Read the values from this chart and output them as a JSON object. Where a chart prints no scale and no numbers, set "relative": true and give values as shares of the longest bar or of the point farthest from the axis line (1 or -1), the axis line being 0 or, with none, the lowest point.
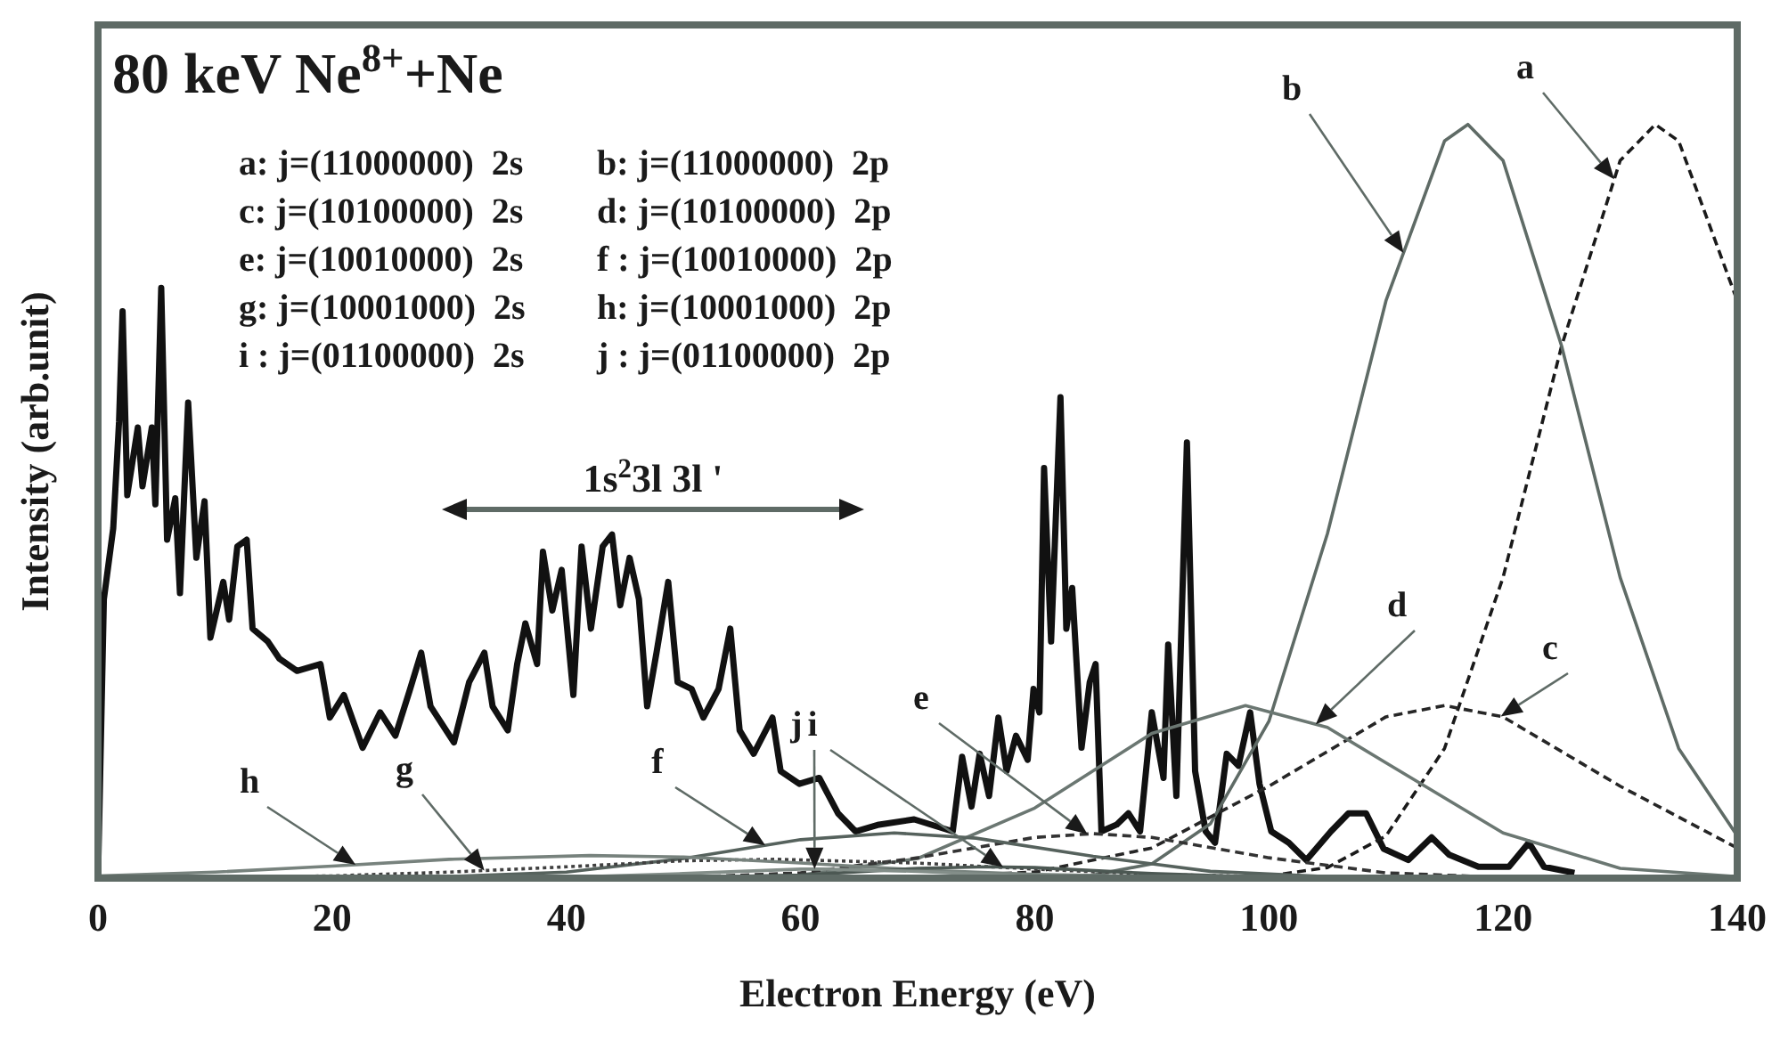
{
  "chart_data": {
    "type": "line",
    "relative": true,
    "marker": "none",
    "title": "80 keV Ne$^{8+}$+Ne",
    "xlabel": "Electron Energy (eV)",
    "ylabel": "Intensity (arb.unit)",
    "xlim": [
      0,
      140
    ],
    "xticks": [
      0,
      20,
      40,
      60,
      80,
      100,
      120,
      140
    ],
    "annotations": [
      "a: j=(11000000)  2s",
      "b: j=(11000000)  2p",
      "c: j=(10100000)  2s",
      "d: j=(10100000)  2p",
      "e: j=(10010000)  2s",
      "f : j=(10010000)  2p",
      "g: j=(10001000)  2s",
      "h: j=(10001000)  2p",
      "i : j=(01100000)  2s",
      "j : j=(01100000)  2p",
      "1s$^{2}$3l 3l '"
    ],
    "series": [
      {
        "color": "#111111",
        "line_style": "solid",
        "x": [
          0,
          0.5,
          1.3,
          1.8,
          2.1,
          2.5,
          3.4,
          3.8,
          4.6,
          4.9,
          5.4,
          5.9,
          6.6,
          7.0,
          7.7,
          8.4,
          9.1,
          9.6,
          10.7,
          11.2,
          11.9,
          12.7,
          13.2,
          14.5,
          15.5,
          17.0,
          19.0,
          19.8,
          21.0,
          22.6,
          24.1,
          25.4,
          26.6,
          27.6,
          28.4,
          29.4,
          30.4,
          31.7,
          33.0,
          33.7,
          35.0,
          35.8,
          36.5,
          37.5,
          38.0,
          38.8,
          39.6,
          40.6,
          41.3,
          42.1,
          43.1,
          43.9,
          44.6,
          45.4,
          46.2,
          46.9,
          47.7,
          48.7,
          49.5,
          50.7,
          51.7,
          53.0,
          54.0,
          54.8,
          56.0,
          57.6,
          58.3,
          59.9,
          61.6,
          63.2,
          64.7,
          66.7,
          69.7,
          73.0,
          73.8,
          74.6,
          75.3,
          76.1,
          76.9,
          77.6,
          78.4,
          79.4,
          79.9,
          80.4,
          80.8,
          81.4,
          82.2,
          82.7,
          83.2,
          84.0,
          84.7,
          85.2,
          85.7,
          87.0,
          88.0,
          89.0,
          90.0,
          91.0,
          91.4,
          92.1,
          93.0,
          93.7,
          94.6,
          95.4,
          96.4,
          97.4,
          98.4,
          99.2,
          100.2,
          101.7,
          103.2,
          105.3,
          106.8,
          108.3,
          109.8,
          111.9,
          113.9,
          115.4,
          117.9,
          120.5,
          122.2,
          123.5,
          126.1
        ],
        "values": [
          0,
          0.37,
          0.464,
          0.606,
          0.752,
          0.508,
          0.598,
          0.52,
          0.598,
          0.496,
          0.783,
          0.449,
          0.504,
          0.378,
          0.631,
          0.425,
          0.5,
          0.319,
          0.393,
          0.343,
          0.44,
          0.449,
          0.331,
          0.314,
          0.291,
          0.275,
          0.284,
          0.213,
          0.243,
          0.173,
          0.22,
          0.189,
          0.248,
          0.299,
          0.228,
          0.204,
          0.18,
          0.26,
          0.299,
          0.228,
          0.196,
          0.284,
          0.338,
          0.284,
          0.433,
          0.355,
          0.409,
          0.243,
          0.44,
          0.331,
          0.44,
          0.456,
          0.362,
          0.425,
          0.37,
          0.228,
          0.299,
          0.393,
          0.26,
          0.251,
          0.213,
          0.251,
          0.331,
          0.196,
          0.165,
          0.213,
          0.142,
          0.125,
          0.133,
          0.086,
          0.062,
          0.071,
          0.078,
          0.062,
          0.161,
          0.095,
          0.165,
          0.109,
          0.213,
          0.142,
          0.189,
          0.157,
          0.251,
          0.22,
          0.544,
          0.314,
          0.638,
          0.331,
          0.385,
          0.173,
          0.26,
          0.284,
          0.062,
          0.071,
          0.086,
          0.062,
          0.22,
          0.133,
          0.31,
          0.109,
          0.578,
          0.142,
          0.062,
          0.047,
          0.165,
          0.149,
          0.22,
          0.125,
          0.062,
          0.047,
          0.024,
          0.062,
          0.086,
          0.086,
          0.039,
          0.024,
          0.054,
          0.031,
          0.015,
          0.015,
          0.047,
          0.015,
          0.007
        ]
      },
      {
        "name": "a",
        "color": "#1a1a1a",
        "line_style": "dashed",
        "x": [
          100,
          105,
          110,
          115,
          120,
          125,
          130,
          133,
          135,
          140
        ],
        "values": [
          0.003,
          0.014,
          0.056,
          0.172,
          0.399,
          0.706,
          0.952,
          1,
          0.978,
          0.766
        ]
      },
      {
        "name": "b",
        "color": "#5f6b66",
        "line_style": "solid",
        "x": [
          75,
          80,
          85,
          90,
          95,
          100,
          105,
          110,
          115,
          117,
          120,
          125,
          130,
          135,
          140
        ],
        "values": [
          0,
          0.001,
          0.004,
          0.019,
          0.072,
          0.208,
          0.457,
          0.766,
          0.978,
          1,
          0.952,
          0.706,
          0.399,
          0.172,
          0.056
        ]
      },
      {
        "name": "c",
        "color": "#262626",
        "line_style": "dashed",
        "x": [
          70,
          80,
          90,
          100,
          110,
          115,
          120,
          130,
          140
        ],
        "values": [
          0.001,
          0.008,
          0.04,
          0.122,
          0.214,
          0.229,
          0.214,
          0.122,
          0.04
        ]
      },
      {
        "name": "d",
        "color": "#6b7772",
        "line_style": "solid",
        "x": [
          60,
          70,
          80,
          90,
          98,
          105,
          110,
          120,
          130,
          140
        ],
        "values": [
          0.004,
          0.026,
          0.093,
          0.192,
          0.229,
          0.2,
          0.153,
          0.06,
          0.013,
          0.002
        ]
      },
      {
        "name": "e",
        "color": "#333333",
        "line_style": "dashed",
        "x": [
          50,
          60,
          70,
          80,
          85,
          90,
          100,
          110,
          120
        ],
        "values": [
          0.001,
          0.007,
          0.027,
          0.054,
          0.059,
          0.054,
          0.027,
          0.007,
          0.001
        ]
      },
      {
        "name": "f",
        "color": "#56625d",
        "line_style": "solid",
        "x": [
          20,
          30,
          40,
          50,
          60,
          68,
          75,
          85,
          95,
          105
        ],
        "values": [
          0,
          0.002,
          0.008,
          0.026,
          0.051,
          0.06,
          0.053,
          0.029,
          0.009,
          0.002
        ]
      },
      {
        "name": "g",
        "color": "#404040",
        "line_style": "dotted",
        "x": [
          10,
          20,
          30,
          40,
          50,
          58,
          70,
          80,
          90,
          100
        ],
        "values": [
          0.001,
          0.003,
          0.008,
          0.015,
          0.023,
          0.025,
          0.02,
          0.012,
          0.005,
          0.002
        ]
      },
      {
        "name": "h",
        "color": "#77827d",
        "line_style": "solid",
        "x": [
          0,
          10,
          20,
          30,
          42,
          50,
          60,
          70,
          80,
          90
        ],
        "values": [
          0.003,
          0.008,
          0.016,
          0.025,
          0.03,
          0.028,
          0.02,
          0.011,
          0.005,
          0.002
        ]
      },
      {
        "name": "i",
        "color": "#4c5853",
        "line_style": "solid",
        "x": [
          50,
          60,
          70,
          76,
          80,
          90,
          100
        ],
        "values": [
          0.001,
          0.004,
          0.013,
          0.015,
          0.014,
          0.006,
          0.001
        ]
      },
      {
        "name": "j",
        "color": "#838e89",
        "line_style": "solid",
        "x": [
          40,
          50,
          60,
          62,
          70,
          80,
          90
        ],
        "values": [
          0.001,
          0.006,
          0.012,
          0.012,
          0.009,
          0.002,
          0
        ]
      }
    ]
  }
}
